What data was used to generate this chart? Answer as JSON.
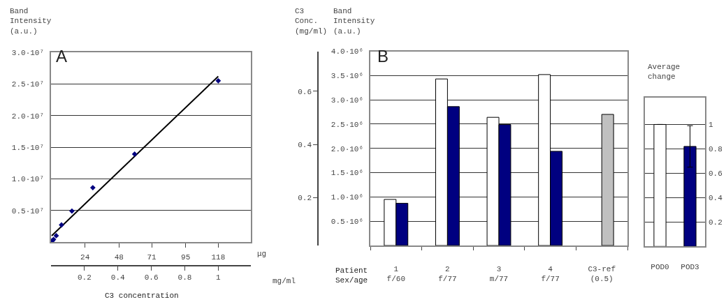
{
  "chart_data": [
    {
      "type": "scatter",
      "ylabel": "Band\nIntensity\n(a.u.)",
      "xlabel": "μg",
      "x2label": "mg/ml",
      "annotations": [
        "A",
        "C3 concentration"
      ],
      "series": [
        {
          "type": "scatter",
          "color": "#000080",
          "marker": "diamond",
          "x": [
            0.9,
            1.8,
            3.7,
            7.4,
            14.75,
            29.5,
            59,
            118
          ],
          "values": [
            200000,
            400000,
            1000000,
            2700000,
            4900000,
            8600000,
            13900000,
            25500000
          ]
        },
        {
          "type": "line",
          "color": "#000000",
          "marker": "none",
          "x": [
            0.5,
            118
          ],
          "values": [
            1000000,
            26200000
          ]
        }
      ],
      "xlim": [
        0,
        141
      ],
      "xticks": [
        24,
        48,
        71,
        95,
        118
      ],
      "x2lim": [
        0,
        1.195
      ],
      "x2ticks": [
        0.2,
        0.4,
        0.6,
        0.8,
        1
      ],
      "ylim": [
        0,
        30000000
      ],
      "yticks": [
        {
          "value": 5000000,
          "label": "0.5·10⁷"
        },
        {
          "value": 10000000,
          "label": "1.0·10⁷"
        },
        {
          "value": 15000000,
          "label": "1.5·10⁷"
        },
        {
          "value": 20000000,
          "label": "2.0·10⁷"
        },
        {
          "value": 25000000,
          "label": "2.5·10⁷"
        },
        {
          "value": 30000000,
          "label": "3.0·10⁷"
        }
      ],
      "grid": "y"
    },
    {
      "type": "bar",
      "ylabel": "Band\nIntensity\n(a.u.)",
      "y2label": "C3\nConc.\n(mg/ml)",
      "annotations": [
        "B",
        "Patient\nSex/age"
      ],
      "categories": [
        "1\nf/60",
        "2\nf/77",
        "3\nm/77",
        "4\nf/77",
        "C3-ref\n(0.5)"
      ],
      "series": [
        {
          "color": "#ffffff",
          "values": [
            950000,
            3430000,
            2640000,
            3520000,
            null
          ]
        },
        {
          "colors": [
            "#000080",
            "#000080",
            "#000080",
            "#000080",
            "#c0c0c0"
          ],
          "values": [
            870000,
            2860000,
            2490000,
            1940000,
            2700000
          ]
        }
      ],
      "ylim": [
        0,
        4000000
      ],
      "yticks": [
        {
          "value": 500000,
          "label": "0.5·10⁶"
        },
        {
          "value": 1000000,
          "label": "1.0·10⁶"
        },
        {
          "value": 1500000,
          "label": "1.5·10⁶"
        },
        {
          "value": 2000000,
          "label": "2.0·10⁶"
        },
        {
          "value": 2500000,
          "label": "2.5·10⁶"
        },
        {
          "value": 3000000,
          "label": "3.0·10⁶"
        },
        {
          "value": 3500000,
          "label": "3.5·10⁶"
        },
        {
          "value": 4000000,
          "label": "4.0·10⁶"
        }
      ],
      "y2lim": [
        0.02,
        0.75
      ],
      "y2ticks": [
        0.2,
        0.4,
        0.6
      ],
      "grid": "y"
    },
    {
      "type": "bar",
      "ylabel": "Average\nchange",
      "categories": [
        "POD0",
        "POD3"
      ],
      "values": [
        1,
        0.82
      ],
      "colors": [
        "#ffffff",
        "#000080"
      ],
      "errors": [
        null,
        0.17
      ],
      "ylim": [
        0,
        1.22
      ],
      "yticks": [
        0.2,
        0.4,
        0.6,
        0.8,
        1
      ],
      "grid": "y"
    }
  ]
}
